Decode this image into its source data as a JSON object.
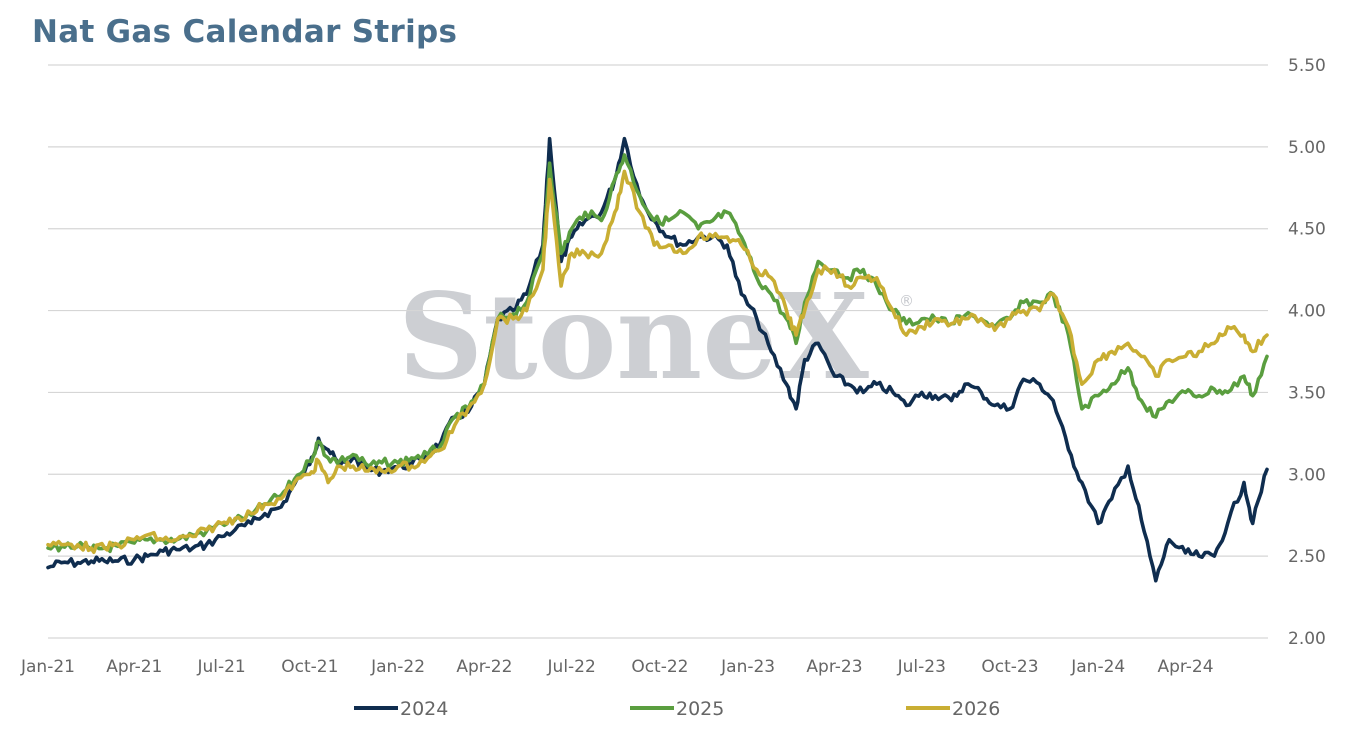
{
  "chart_data": {
    "type": "line",
    "title": "Nat Gas Calendar Strips",
    "xlabel": "",
    "ylabel": "",
    "ylim": [
      2.0,
      5.5
    ],
    "y_ticks": [
      "2.00",
      "2.50",
      "3.00",
      "3.50",
      "4.00",
      "4.50",
      "5.00",
      "5.50"
    ],
    "y_axis_side": "right",
    "x_ticks": [
      "Jan-21",
      "Apr-21",
      "Jul-21",
      "Oct-21",
      "Jan-22",
      "Apr-22",
      "Jul-22",
      "Oct-22",
      "Jan-23",
      "Apr-23",
      "Jul-23",
      "Oct-23",
      "Jan-24",
      "Apr-24"
    ],
    "grid": "horizontal",
    "legend_position": "bottom",
    "watermark": "StoneX",
    "watermark_mark": "®",
    "series": [
      {
        "name": "2024",
        "color": "#0f2d4f",
        "points": [
          [
            "2021-01-01",
            2.43
          ],
          [
            "2021-01-15",
            2.46
          ],
          [
            "2021-02-01",
            2.46
          ],
          [
            "2021-02-15",
            2.47
          ],
          [
            "2021-03-01",
            2.47
          ],
          [
            "2021-03-15",
            2.47
          ],
          [
            "2021-04-01",
            2.48
          ],
          [
            "2021-04-15",
            2.5
          ],
          [
            "2021-05-01",
            2.53
          ],
          [
            "2021-05-15",
            2.54
          ],
          [
            "2021-06-01",
            2.55
          ],
          [
            "2021-06-15",
            2.57
          ],
          [
            "2021-07-01",
            2.62
          ],
          [
            "2021-07-15",
            2.66
          ],
          [
            "2021-08-01",
            2.7
          ],
          [
            "2021-08-15",
            2.76
          ],
          [
            "2021-09-01",
            2.8
          ],
          [
            "2021-09-15",
            2.94
          ],
          [
            "2021-10-01",
            3.06
          ],
          [
            "2021-10-10",
            3.22
          ],
          [
            "2021-10-20",
            3.15
          ],
          [
            "2021-11-01",
            3.05
          ],
          [
            "2021-11-15",
            3.1
          ],
          [
            "2021-12-01",
            3.03
          ],
          [
            "2021-12-15",
            3.02
          ],
          [
            "2022-01-01",
            3.05
          ],
          [
            "2022-01-15",
            3.06
          ],
          [
            "2022-02-01",
            3.12
          ],
          [
            "2022-02-15",
            3.2
          ],
          [
            "2022-03-01",
            3.35
          ],
          [
            "2022-03-15",
            3.38
          ],
          [
            "2022-04-01",
            3.55
          ],
          [
            "2022-04-15",
            3.95
          ],
          [
            "2022-05-01",
            4.0
          ],
          [
            "2022-05-15",
            4.1
          ],
          [
            "2022-06-01",
            4.4
          ],
          [
            "2022-06-08",
            5.05
          ],
          [
            "2022-06-20",
            4.3
          ],
          [
            "2022-07-01",
            4.45
          ],
          [
            "2022-07-15",
            4.55
          ],
          [
            "2022-08-01",
            4.6
          ],
          [
            "2022-08-15",
            4.8
          ],
          [
            "2022-08-25",
            5.05
          ],
          [
            "2022-09-10",
            4.7
          ],
          [
            "2022-09-25",
            4.55
          ],
          [
            "2022-10-10",
            4.45
          ],
          [
            "2022-10-25",
            4.4
          ],
          [
            "2022-11-10",
            4.45
          ],
          [
            "2022-11-25",
            4.45
          ],
          [
            "2022-12-10",
            4.4
          ],
          [
            "2022-12-25",
            4.1
          ],
          [
            "2023-01-10",
            3.95
          ],
          [
            "2023-01-25",
            3.75
          ],
          [
            "2023-02-10",
            3.55
          ],
          [
            "2023-02-20",
            3.4
          ],
          [
            "2023-03-01",
            3.7
          ],
          [
            "2023-03-15",
            3.8
          ],
          [
            "2023-04-01",
            3.6
          ],
          [
            "2023-04-15",
            3.55
          ],
          [
            "2023-05-01",
            3.5
          ],
          [
            "2023-05-15",
            3.55
          ],
          [
            "2023-06-01",
            3.5
          ],
          [
            "2023-06-15",
            3.42
          ],
          [
            "2023-07-01",
            3.5
          ],
          [
            "2023-07-15",
            3.48
          ],
          [
            "2023-08-01",
            3.45
          ],
          [
            "2023-08-15",
            3.55
          ],
          [
            "2023-09-01",
            3.5
          ],
          [
            "2023-09-15",
            3.42
          ],
          [
            "2023-10-01",
            3.4
          ],
          [
            "2023-10-15",
            3.58
          ],
          [
            "2023-11-01",
            3.55
          ],
          [
            "2023-11-15",
            3.45
          ],
          [
            "2023-12-01",
            3.15
          ],
          [
            "2023-12-15",
            2.95
          ],
          [
            "2024-01-01",
            2.7
          ],
          [
            "2024-01-15",
            2.85
          ],
          [
            "2024-02-01",
            3.05
          ],
          [
            "2024-02-15",
            2.72
          ],
          [
            "2024-03-01",
            2.35
          ],
          [
            "2024-03-15",
            2.6
          ],
          [
            "2024-04-01",
            2.52
          ],
          [
            "2024-04-15",
            2.5
          ],
          [
            "2024-05-01",
            2.5
          ],
          [
            "2024-05-15",
            2.7
          ],
          [
            "2024-06-01",
            2.95
          ],
          [
            "2024-06-10",
            2.7
          ],
          [
            "2024-06-25",
            3.03
          ]
        ]
      },
      {
        "name": "2025",
        "color": "#5a9e3f",
        "points": [
          [
            "2021-01-01",
            2.55
          ],
          [
            "2021-01-15",
            2.56
          ],
          [
            "2021-02-01",
            2.56
          ],
          [
            "2021-02-15",
            2.54
          ],
          [
            "2021-03-01",
            2.55
          ],
          [
            "2021-03-15",
            2.56
          ],
          [
            "2021-04-01",
            2.58
          ],
          [
            "2021-04-15",
            2.6
          ],
          [
            "2021-05-01",
            2.6
          ],
          [
            "2021-05-15",
            2.6
          ],
          [
            "2021-06-01",
            2.63
          ],
          [
            "2021-06-15",
            2.65
          ],
          [
            "2021-07-01",
            2.7
          ],
          [
            "2021-07-15",
            2.72
          ],
          [
            "2021-08-01",
            2.75
          ],
          [
            "2021-08-15",
            2.82
          ],
          [
            "2021-09-01",
            2.87
          ],
          [
            "2021-09-15",
            2.97
          ],
          [
            "2021-10-01",
            3.08
          ],
          [
            "2021-10-10",
            3.2
          ],
          [
            "2021-10-20",
            3.1
          ],
          [
            "2021-11-01",
            3.08
          ],
          [
            "2021-11-15",
            3.12
          ],
          [
            "2021-12-01",
            3.05
          ],
          [
            "2021-12-15",
            3.07
          ],
          [
            "2022-01-01",
            3.07
          ],
          [
            "2022-01-15",
            3.1
          ],
          [
            "2022-02-01",
            3.12
          ],
          [
            "2022-02-15",
            3.18
          ],
          [
            "2022-03-01",
            3.35
          ],
          [
            "2022-03-15",
            3.4
          ],
          [
            "2022-04-01",
            3.55
          ],
          [
            "2022-04-15",
            3.95
          ],
          [
            "2022-05-01",
            3.98
          ],
          [
            "2022-05-15",
            4.05
          ],
          [
            "2022-06-01",
            4.35
          ],
          [
            "2022-06-08",
            4.9
          ],
          [
            "2022-06-20",
            4.35
          ],
          [
            "2022-07-01",
            4.5
          ],
          [
            "2022-07-15",
            4.6
          ],
          [
            "2022-08-01",
            4.55
          ],
          [
            "2022-08-15",
            4.8
          ],
          [
            "2022-08-25",
            4.95
          ],
          [
            "2022-09-10",
            4.7
          ],
          [
            "2022-09-25",
            4.55
          ],
          [
            "2022-10-10",
            4.55
          ],
          [
            "2022-10-25",
            4.6
          ],
          [
            "2022-11-10",
            4.5
          ],
          [
            "2022-11-25",
            4.55
          ],
          [
            "2022-12-10",
            4.6
          ],
          [
            "2022-12-25",
            4.45
          ],
          [
            "2023-01-10",
            4.2
          ],
          [
            "2023-01-25",
            4.1
          ],
          [
            "2023-02-10",
            3.95
          ],
          [
            "2023-02-20",
            3.8
          ],
          [
            "2023-03-01",
            4.05
          ],
          [
            "2023-03-15",
            4.3
          ],
          [
            "2023-04-01",
            4.25
          ],
          [
            "2023-04-15",
            4.2
          ],
          [
            "2023-05-01",
            4.25
          ],
          [
            "2023-05-15",
            4.15
          ],
          [
            "2023-06-01",
            4.0
          ],
          [
            "2023-06-15",
            3.92
          ],
          [
            "2023-07-01",
            3.95
          ],
          [
            "2023-07-15",
            3.95
          ],
          [
            "2023-08-01",
            3.92
          ],
          [
            "2023-08-15",
            3.97
          ],
          [
            "2023-09-01",
            3.95
          ],
          [
            "2023-09-15",
            3.9
          ],
          [
            "2023-10-01",
            3.95
          ],
          [
            "2023-10-15",
            4.05
          ],
          [
            "2023-11-01",
            4.05
          ],
          [
            "2023-11-15",
            4.1
          ],
          [
            "2023-12-01",
            3.85
          ],
          [
            "2023-12-15",
            3.4
          ],
          [
            "2024-01-01",
            3.48
          ],
          [
            "2024-01-15",
            3.55
          ],
          [
            "2024-02-01",
            3.65
          ],
          [
            "2024-02-15",
            3.45
          ],
          [
            "2024-03-01",
            3.35
          ],
          [
            "2024-03-15",
            3.45
          ],
          [
            "2024-04-01",
            3.5
          ],
          [
            "2024-04-15",
            3.48
          ],
          [
            "2024-05-01",
            3.52
          ],
          [
            "2024-05-15",
            3.5
          ],
          [
            "2024-06-01",
            3.6
          ],
          [
            "2024-06-10",
            3.48
          ],
          [
            "2024-06-25",
            3.72
          ]
        ]
      },
      {
        "name": "2026",
        "color": "#c9ae33",
        "points": [
          [
            "2021-01-01",
            2.57
          ],
          [
            "2021-01-15",
            2.57
          ],
          [
            "2021-02-01",
            2.57
          ],
          [
            "2021-02-15",
            2.55
          ],
          [
            "2021-03-01",
            2.55
          ],
          [
            "2021-03-15",
            2.57
          ],
          [
            "2021-04-01",
            2.6
          ],
          [
            "2021-04-15",
            2.63
          ],
          [
            "2021-05-01",
            2.6
          ],
          [
            "2021-05-15",
            2.6
          ],
          [
            "2021-06-01",
            2.62
          ],
          [
            "2021-06-15",
            2.66
          ],
          [
            "2021-07-01",
            2.7
          ],
          [
            "2021-07-15",
            2.73
          ],
          [
            "2021-08-01",
            2.76
          ],
          [
            "2021-08-15",
            2.82
          ],
          [
            "2021-09-01",
            2.85
          ],
          [
            "2021-09-15",
            2.95
          ],
          [
            "2021-10-01",
            3.0
          ],
          [
            "2021-10-10",
            3.08
          ],
          [
            "2021-10-20",
            2.95
          ],
          [
            "2021-11-01",
            3.05
          ],
          [
            "2021-11-15",
            3.05
          ],
          [
            "2021-12-01",
            3.02
          ],
          [
            "2021-12-15",
            3.02
          ],
          [
            "2022-01-01",
            3.05
          ],
          [
            "2022-01-15",
            3.05
          ],
          [
            "2022-02-01",
            3.1
          ],
          [
            "2022-02-15",
            3.15
          ],
          [
            "2022-03-01",
            3.3
          ],
          [
            "2022-03-15",
            3.4
          ],
          [
            "2022-04-01",
            3.55
          ],
          [
            "2022-04-15",
            3.95
          ],
          [
            "2022-05-01",
            3.95
          ],
          [
            "2022-05-15",
            4.0
          ],
          [
            "2022-06-01",
            4.25
          ],
          [
            "2022-06-08",
            4.8
          ],
          [
            "2022-06-20",
            4.15
          ],
          [
            "2022-07-01",
            4.35
          ],
          [
            "2022-07-15",
            4.35
          ],
          [
            "2022-08-01",
            4.35
          ],
          [
            "2022-08-15",
            4.6
          ],
          [
            "2022-08-25",
            4.85
          ],
          [
            "2022-09-10",
            4.6
          ],
          [
            "2022-09-25",
            4.4
          ],
          [
            "2022-10-10",
            4.4
          ],
          [
            "2022-10-25",
            4.35
          ],
          [
            "2022-11-10",
            4.45
          ],
          [
            "2022-11-25",
            4.45
          ],
          [
            "2022-12-10",
            4.45
          ],
          [
            "2022-12-25",
            4.4
          ],
          [
            "2023-01-10",
            4.25
          ],
          [
            "2023-01-25",
            4.2
          ],
          [
            "2023-02-10",
            4.0
          ],
          [
            "2023-02-20",
            3.85
          ],
          [
            "2023-03-01",
            4.0
          ],
          [
            "2023-03-15",
            4.25
          ],
          [
            "2023-04-01",
            4.25
          ],
          [
            "2023-04-15",
            4.15
          ],
          [
            "2023-05-01",
            4.2
          ],
          [
            "2023-05-15",
            4.2
          ],
          [
            "2023-06-01",
            4.0
          ],
          [
            "2023-06-15",
            3.85
          ],
          [
            "2023-07-01",
            3.9
          ],
          [
            "2023-07-15",
            3.95
          ],
          [
            "2023-08-01",
            3.92
          ],
          [
            "2023-08-15",
            3.95
          ],
          [
            "2023-09-01",
            3.95
          ],
          [
            "2023-09-15",
            3.88
          ],
          [
            "2023-10-01",
            3.95
          ],
          [
            "2023-10-15",
            4.0
          ],
          [
            "2023-11-01",
            4.0
          ],
          [
            "2023-11-15",
            4.1
          ],
          [
            "2023-12-01",
            3.9
          ],
          [
            "2023-12-15",
            3.55
          ],
          [
            "2024-01-01",
            3.7
          ],
          [
            "2024-01-15",
            3.75
          ],
          [
            "2024-02-01",
            3.8
          ],
          [
            "2024-02-15",
            3.72
          ],
          [
            "2024-03-01",
            3.6
          ],
          [
            "2024-03-15",
            3.7
          ],
          [
            "2024-04-01",
            3.72
          ],
          [
            "2024-04-15",
            3.75
          ],
          [
            "2024-05-01",
            3.8
          ],
          [
            "2024-05-15",
            3.9
          ],
          [
            "2024-06-01",
            3.85
          ],
          [
            "2024-06-10",
            3.75
          ],
          [
            "2024-06-25",
            3.85
          ]
        ]
      }
    ]
  }
}
